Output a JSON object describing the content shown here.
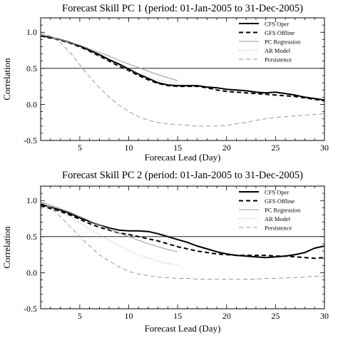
{
  "chart_data": [
    {
      "type": "line",
      "title": "Forecast Skill PC 1 (period: 01-Jan-2005 to 31-Dec-2005)",
      "xlabel": "Forecast Lead (Day)",
      "ylabel": "Correlation",
      "xlim": [
        1,
        30
      ],
      "ylim": [
        -0.5,
        1.2
      ],
      "xticks": [
        "5",
        "10",
        "15",
        "20",
        "25",
        "30"
      ],
      "yticks": [
        "-0.5",
        "0.0",
        "0.5",
        "1.0"
      ],
      "xtick_values": [
        5,
        10,
        15,
        20,
        25,
        30
      ],
      "ytick_values": [
        -0.5,
        0.0,
        0.5,
        1.0
      ],
      "reference_line": 0.5,
      "legend_position": "top-right",
      "series": [
        {
          "name": "CFS Oper",
          "style": "solid-thick",
          "color": "#000000",
          "x": [
            1,
            2,
            3,
            4,
            5,
            6,
            7,
            8,
            9,
            10,
            11,
            12,
            13,
            14,
            15,
            16,
            17,
            18,
            19,
            20,
            21,
            22,
            23,
            24,
            25,
            26,
            27,
            28,
            29,
            30
          ],
          "y": [
            0.95,
            0.93,
            0.9,
            0.86,
            0.81,
            0.75,
            0.69,
            0.62,
            0.56,
            0.49,
            0.42,
            0.36,
            0.3,
            0.27,
            0.26,
            0.26,
            0.26,
            0.24,
            0.23,
            0.21,
            0.2,
            0.19,
            0.17,
            0.16,
            0.17,
            0.15,
            0.13,
            0.1,
            0.08,
            0.06
          ]
        },
        {
          "name": "GFS Offline",
          "style": "dashed-thick",
          "color": "#000000",
          "x": [
            1,
            2,
            3,
            4,
            5,
            6,
            7,
            8,
            9,
            10,
            11,
            12,
            13,
            14,
            15,
            16,
            17,
            18,
            19,
            20,
            21,
            22,
            23,
            24,
            25,
            26,
            27,
            28,
            29,
            30
          ],
          "y": [
            0.95,
            0.92,
            0.89,
            0.85,
            0.8,
            0.74,
            0.67,
            0.6,
            0.53,
            0.47,
            0.4,
            0.34,
            0.29,
            0.26,
            0.25,
            0.25,
            0.25,
            0.23,
            0.2,
            0.18,
            0.17,
            0.16,
            0.15,
            0.14,
            0.13,
            0.12,
            0.11,
            0.09,
            0.07,
            0.05
          ]
        },
        {
          "name": "PC Regression",
          "style": "solid-thin",
          "color": "#999999",
          "x": [
            1,
            2,
            3,
            4,
            5,
            6,
            7,
            8,
            9,
            10,
            11,
            12,
            13,
            14,
            15
          ],
          "y": [
            0.97,
            0.94,
            0.9,
            0.86,
            0.82,
            0.77,
            0.72,
            0.67,
            0.61,
            0.56,
            0.51,
            0.46,
            0.41,
            0.37,
            0.33
          ]
        },
        {
          "name": "AR Model",
          "style": "dotted",
          "color": "#999999",
          "x": [
            1,
            2,
            3,
            4,
            5,
            6,
            7,
            8,
            9,
            10,
            11,
            12,
            13,
            14,
            15
          ],
          "y": [
            0.96,
            0.93,
            0.89,
            0.84,
            0.78,
            0.72,
            0.66,
            0.6,
            0.54,
            0.48,
            0.43,
            0.38,
            0.34,
            0.31,
            0.29
          ]
        },
        {
          "name": "Persistence",
          "style": "dashed-thin",
          "color": "#999999",
          "x": [
            1,
            2,
            3,
            4,
            5,
            6,
            7,
            8,
            9,
            10,
            11,
            12,
            13,
            14,
            15,
            16,
            17,
            18,
            19,
            20,
            21,
            22,
            23,
            24,
            25,
            26,
            27,
            28,
            29,
            30
          ],
          "y": [
            0.99,
            0.95,
            0.86,
            0.72,
            0.55,
            0.38,
            0.23,
            0.1,
            -0.01,
            -0.1,
            -0.17,
            -0.22,
            -0.25,
            -0.27,
            -0.28,
            -0.29,
            -0.3,
            -0.3,
            -0.3,
            -0.29,
            -0.27,
            -0.25,
            -0.22,
            -0.2,
            -0.18,
            -0.17,
            -0.16,
            -0.15,
            -0.14,
            -0.13
          ]
        }
      ]
    },
    {
      "type": "line",
      "title": "Forecast Skill PC 2 (period: 01-Jan-2005 to 31-Dec-2005)",
      "xlabel": "Forecast Lead (Day)",
      "ylabel": "Correlation",
      "xlim": [
        1,
        30
      ],
      "ylim": [
        -0.5,
        1.2
      ],
      "xticks": [
        "5",
        "10",
        "15",
        "20",
        "25",
        "30"
      ],
      "yticks": [
        "-0.5",
        "0.0",
        "0.5",
        "1.0"
      ],
      "xtick_values": [
        5,
        10,
        15,
        20,
        25,
        30
      ],
      "ytick_values": [
        -0.5,
        0.0,
        0.5,
        1.0
      ],
      "reference_line": 0.5,
      "legend_position": "top-right",
      "series": [
        {
          "name": "CFS Oper",
          "style": "solid-thick",
          "color": "#000000",
          "x": [
            1,
            2,
            3,
            4,
            5,
            6,
            7,
            8,
            9,
            10,
            11,
            12,
            13,
            14,
            15,
            16,
            17,
            18,
            19,
            20,
            21,
            22,
            23,
            24,
            25,
            26,
            27,
            28,
            29,
            30
          ],
          "y": [
            0.95,
            0.91,
            0.87,
            0.82,
            0.76,
            0.71,
            0.66,
            0.62,
            0.59,
            0.58,
            0.58,
            0.57,
            0.54,
            0.5,
            0.46,
            0.42,
            0.37,
            0.33,
            0.29,
            0.26,
            0.24,
            0.23,
            0.22,
            0.21,
            0.22,
            0.23,
            0.25,
            0.28,
            0.34,
            0.37
          ]
        },
        {
          "name": "GFS Offline",
          "style": "dashed-thick",
          "color": "#000000",
          "x": [
            1,
            2,
            3,
            4,
            5,
            6,
            7,
            8,
            9,
            10,
            11,
            12,
            13,
            14,
            15,
            16,
            17,
            18,
            19,
            20,
            21,
            22,
            23,
            24,
            25,
            26,
            27,
            28,
            29,
            30
          ],
          "y": [
            0.93,
            0.89,
            0.85,
            0.8,
            0.74,
            0.68,
            0.63,
            0.59,
            0.55,
            0.53,
            0.5,
            0.47,
            0.44,
            0.4,
            0.36,
            0.33,
            0.3,
            0.28,
            0.26,
            0.25,
            0.24,
            0.24,
            0.24,
            0.24,
            0.23,
            0.23,
            0.22,
            0.21,
            0.2,
            0.21
          ]
        },
        {
          "name": "PC Regression",
          "style": "solid-thin",
          "color": "#999999",
          "x": [
            1,
            2,
            3,
            4,
            5,
            6,
            7,
            8,
            9,
            10,
            11,
            12,
            13,
            14,
            15
          ],
          "y": [
            0.98,
            0.94,
            0.89,
            0.84,
            0.78,
            0.72,
            0.66,
            0.6,
            0.55,
            0.5,
            0.45,
            0.4,
            0.36,
            0.32,
            0.29
          ]
        },
        {
          "name": "AR Model",
          "style": "dotted",
          "color": "#999999",
          "x": [
            1,
            2,
            3,
            4,
            5,
            6,
            7,
            8,
            9,
            10,
            11,
            12,
            13,
            14,
            15
          ],
          "y": [
            0.97,
            0.91,
            0.84,
            0.77,
            0.69,
            0.61,
            0.53,
            0.45,
            0.38,
            0.31,
            0.25,
            0.2,
            0.16,
            0.13,
            0.11
          ]
        },
        {
          "name": "Persistence",
          "style": "dashed-thin",
          "color": "#999999",
          "x": [
            1,
            2,
            3,
            4,
            5,
            6,
            7,
            8,
            9,
            10,
            11,
            12,
            13,
            14,
            15,
            16,
            17,
            18,
            19,
            20,
            21,
            22,
            23,
            24,
            25,
            26,
            27,
            28,
            29,
            30
          ],
          "y": [
            0.98,
            0.9,
            0.78,
            0.64,
            0.5,
            0.37,
            0.25,
            0.16,
            0.08,
            0.02,
            -0.02,
            -0.04,
            -0.06,
            -0.07,
            -0.08,
            -0.08,
            -0.09,
            -0.09,
            -0.09,
            -0.09,
            -0.09,
            -0.09,
            -0.09,
            -0.08,
            -0.08,
            -0.07,
            -0.07,
            -0.06,
            -0.05,
            -0.05
          ]
        }
      ]
    }
  ]
}
